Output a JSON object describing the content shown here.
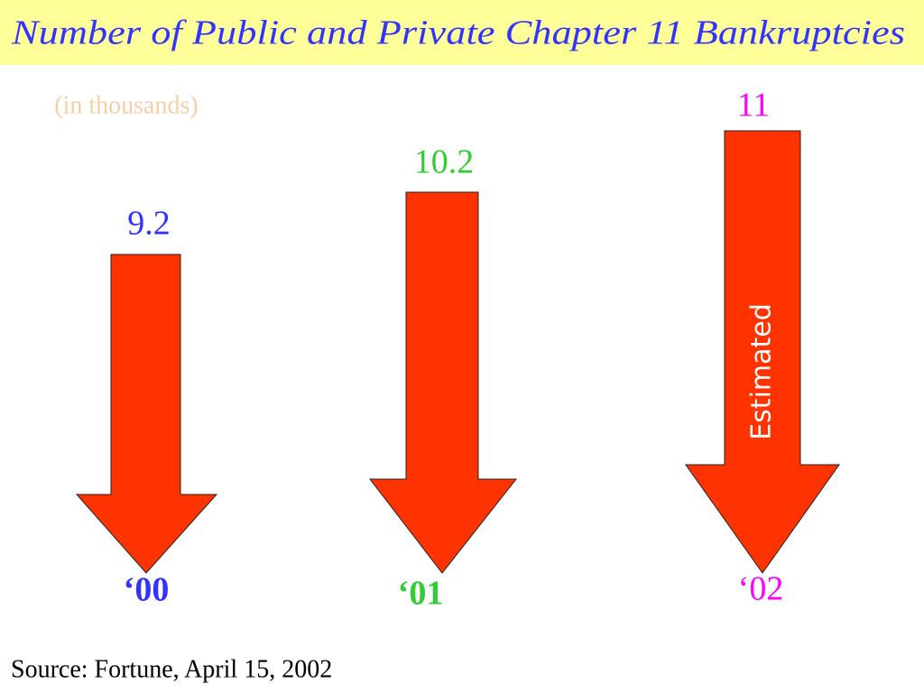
{
  "header": {
    "title": "Number of Public and Private Chapter 11 Bankruptcies",
    "subtitle": "(in thousands)"
  },
  "items": [
    {
      "value": "9.2",
      "year": "‘00"
    },
    {
      "value": "10.2",
      "year": "‘01"
    },
    {
      "value": "11",
      "year": "‘02",
      "note": "Estimated"
    }
  ],
  "footer": {
    "source": "Source:  Fortune, April 15, 2002"
  }
}
